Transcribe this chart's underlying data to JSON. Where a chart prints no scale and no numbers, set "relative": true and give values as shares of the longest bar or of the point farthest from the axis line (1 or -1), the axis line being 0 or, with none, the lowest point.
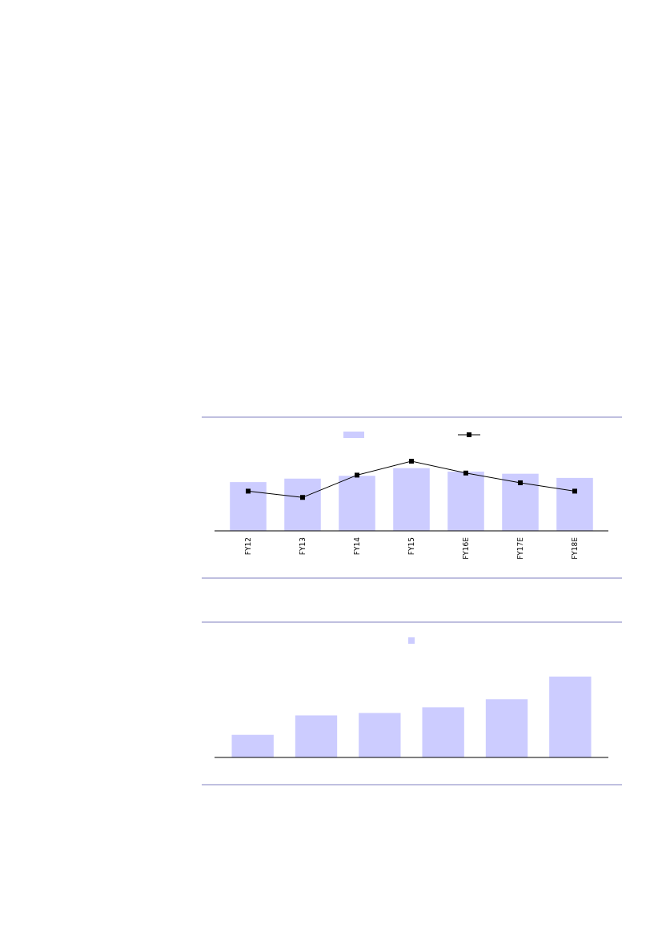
{
  "chart_data": [
    {
      "type": "bar",
      "relative": true,
      "categories": [
        "FY12",
        "FY13",
        "FY14",
        "FY15",
        "FY16E",
        "FY17E",
        "FY18E"
      ],
      "marker": "square",
      "series": [
        {
          "type": "bar",
          "color": "#ccccff",
          "values": [
            0.7,
            0.75,
            0.79,
            0.9,
            0.85,
            0.82,
            0.76
          ]
        },
        {
          "type": "line",
          "color": "#000000",
          "values": [
            0.57,
            0.48,
            0.8,
            1,
            0.83,
            0.69,
            0.57
          ]
        }
      ]
    },
    {
      "type": "bar",
      "relative": true,
      "categories": [
        null,
        null,
        null,
        null,
        null,
        null
      ],
      "color": "#ccccff",
      "values": [
        0.28,
        0.52,
        0.55,
        0.62,
        0.72,
        1
      ]
    }
  ]
}
